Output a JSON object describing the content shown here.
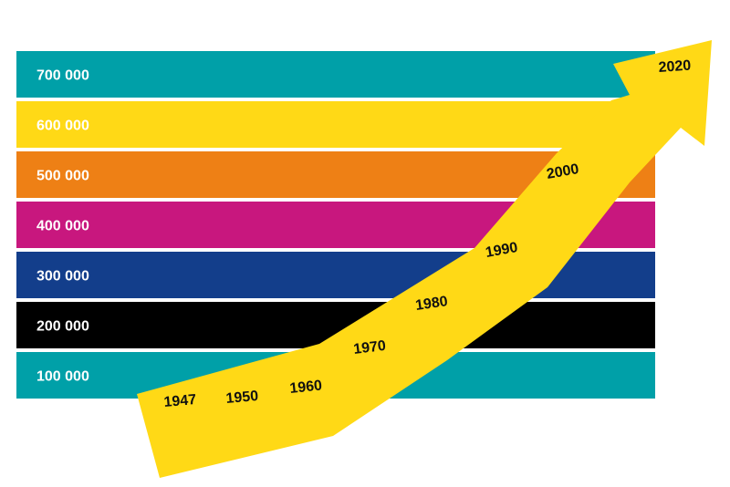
{
  "chart_data": {
    "type": "infographic-arrow",
    "bands": [
      {
        "label": "700 000",
        "value": 700000,
        "color": "#00A0A8"
      },
      {
        "label": "600 000",
        "value": 600000,
        "color": "#FFD916"
      },
      {
        "label": "500 000",
        "value": 500000,
        "color": "#EE8015"
      },
      {
        "label": "400 000",
        "value": 400000,
        "color": "#C8177E"
      },
      {
        "label": "300 000",
        "value": 300000,
        "color": "#133E8B"
      },
      {
        "label": "200 000",
        "value": 200000,
        "color": "#000000"
      },
      {
        "label": "100 000",
        "value": 100000,
        "color": "#00A0A8"
      }
    ],
    "years": [
      "1947",
      "1950",
      "1960",
      "1970",
      "1980",
      "1990",
      "2000",
      "2020"
    ],
    "arrow_color": "#FFD916"
  }
}
